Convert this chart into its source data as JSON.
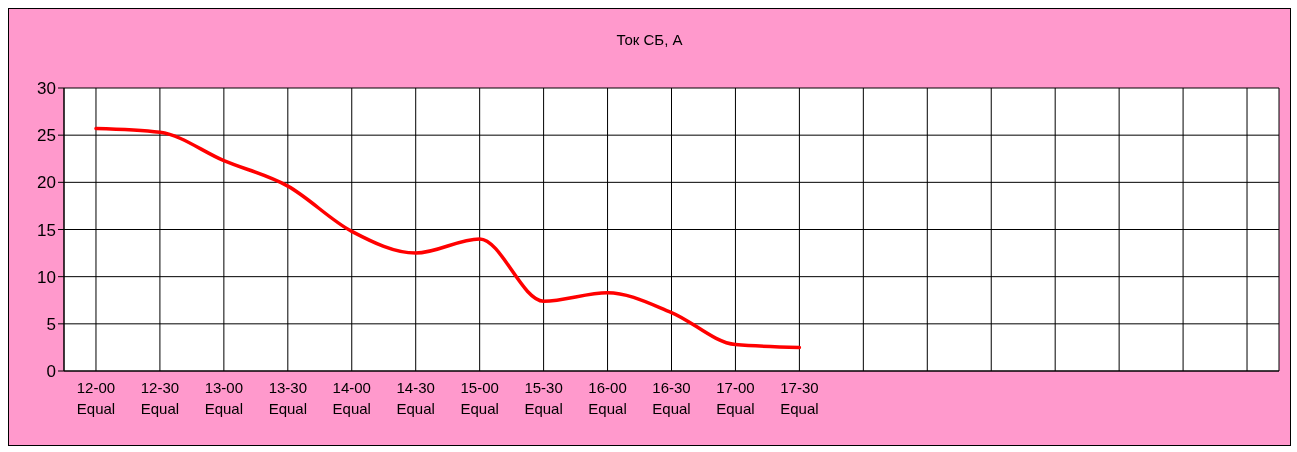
{
  "chart_data": {
    "type": "line",
    "title": "Ток СБ, А",
    "categories": [
      "12-00\nEqual",
      "12-30\nEqual",
      "13-00\nEqual",
      "13-30\nEqual",
      "14-00\nEqual",
      "14-30\nEqual",
      "15-00\nEqual",
      "15-30\nEqual",
      "16-00\nEqual",
      "16-30\nEqual",
      "17-00\nEqual",
      "17-30\nEqual",
      null,
      null,
      null,
      null,
      null,
      null,
      null
    ],
    "values": [
      25.7,
      25.3,
      22.3,
      19.6,
      14.8,
      12.5,
      14.0,
      7.4,
      8.3,
      6.2,
      2.8,
      2.5,
      null,
      null,
      null,
      null,
      null,
      null,
      null
    ],
    "color": "#ff0000",
    "ylim": [
      0,
      30
    ],
    "yticks": [
      0,
      5,
      10,
      15,
      20,
      25,
      30
    ],
    "grid": true,
    "legend": false,
    "marker": "none",
    "line_style": "solid"
  }
}
